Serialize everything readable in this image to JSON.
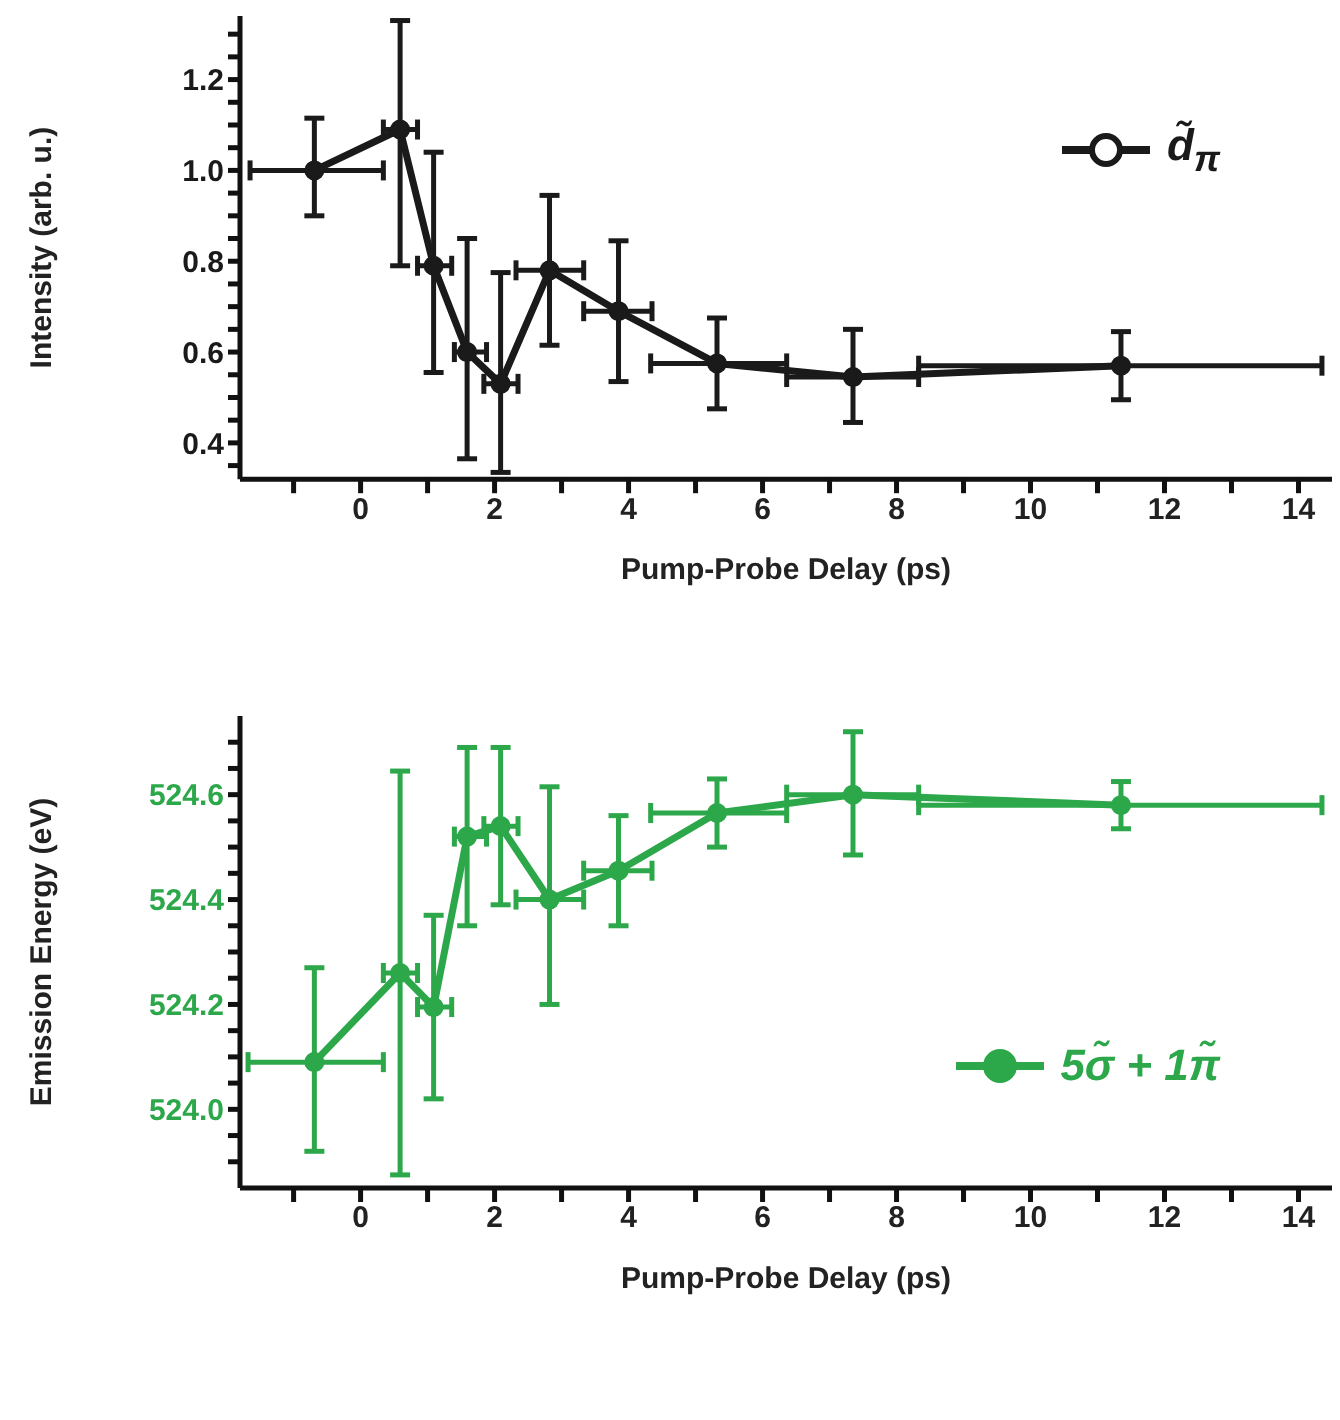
{
  "chart_data": [
    {
      "type": "line",
      "xlabel": "Pump-Probe Delay (ps)",
      "ylabel": "Intensity (arb. u.)",
      "xlim": [
        -1.8,
        14.5
      ],
      "ylim": [
        0.32,
        1.34
      ],
      "xticks": [
        {
          "value": -1,
          "label": null
        },
        0,
        {
          "value": 1,
          "label": null
        },
        2,
        {
          "value": 3,
          "label": null
        },
        4,
        {
          "value": 5,
          "label": null
        },
        6,
        {
          "value": 7,
          "label": null
        },
        8,
        {
          "value": 9,
          "label": null
        },
        10,
        {
          "value": 11,
          "label": null
        },
        12,
        {
          "value": 13,
          "label": null
        },
        14
      ],
      "yticks": [
        {
          "value": 0.35,
          "label": null
        },
        0.4,
        {
          "value": 0.45,
          "label": null
        },
        {
          "value": 0.5,
          "label": null
        },
        {
          "value": 0.55,
          "label": null
        },
        0.6,
        {
          "value": 0.65,
          "label": null
        },
        {
          "value": 0.7,
          "label": null
        },
        {
          "value": 0.75,
          "label": null
        },
        0.8,
        {
          "value": 0.85,
          "label": null
        },
        {
          "value": 0.9,
          "label": null
        },
        {
          "value": 0.95,
          "label": null
        },
        {
          "value": 1.0,
          "label": "1.0"
        },
        {
          "value": 1.05,
          "label": null
        },
        {
          "value": 1.1,
          "label": null
        },
        {
          "value": 1.15,
          "label": null
        },
        1.2,
        {
          "value": 1.25,
          "label": null
        },
        {
          "value": 1.3,
          "label": null
        }
      ],
      "legend": "top right",
      "marker": "circle",
      "line_style": "solid",
      "grid": false,
      "series": [
        {
          "name": "d̃$_{π}$",
          "color": "#1a1a1a",
          "x": [
            -0.69,
            0.59,
            1.09,
            1.59,
            2.09,
            2.82,
            3.85,
            5.32,
            7.35,
            11.35
          ],
          "values": [
            1.0,
            1.09,
            0.79,
            0.6,
            0.53,
            0.78,
            0.69,
            0.575,
            0.545,
            0.57
          ],
          "errors": [
            [
              0.9,
              1.115
            ],
            [
              0.79,
              1.33
            ],
            [
              0.555,
              1.04
            ],
            [
              0.365,
              0.85
            ],
            [
              0.335,
              0.775
            ],
            [
              0.615,
              0.945
            ],
            [
              0.535,
              0.845
            ],
            [
              0.475,
              0.675
            ],
            [
              0.445,
              0.65
            ],
            [
              0.495,
              0.645
            ]
          ],
          "xerrors": [
            [
              -1.65,
              0.34
            ],
            [
              0.34,
              0.85
            ],
            [
              0.85,
              1.36
            ],
            [
              1.4,
              1.88
            ],
            [
              1.84,
              2.35
            ],
            [
              2.32,
              3.33
            ],
            [
              3.33,
              4.35
            ],
            [
              4.33,
              6.36
            ],
            [
              6.36,
              8.33
            ],
            [
              8.33,
              14.35
            ]
          ]
        }
      ]
    },
    {
      "type": "line",
      "xlabel": "Pump-Probe Delay (ps)",
      "ylabel": "Emission Energy (eV)",
      "xlim": [
        -1.8,
        14.5
      ],
      "ylim": [
        523.85,
        524.75
      ],
      "xticks": [
        {
          "value": -1,
          "label": null
        },
        0,
        {
          "value": 1,
          "label": null
        },
        2,
        {
          "value": 3,
          "label": null
        },
        4,
        {
          "value": 5,
          "label": null
        },
        6,
        {
          "value": 7,
          "label": null
        },
        8,
        {
          "value": 9,
          "label": null
        },
        10,
        {
          "value": 11,
          "label": null
        },
        12,
        {
          "value": 13,
          "label": null
        },
        14
      ],
      "yticks": [
        {
          "value": 523.9,
          "label": null
        },
        {
          "value": 523.95,
          "label": null
        },
        {
          "value": 524.0,
          "label": "524.0"
        },
        {
          "value": 524.05,
          "label": null
        },
        {
          "value": 524.1,
          "label": null
        },
        {
          "value": 524.15,
          "label": null
        },
        {
          "value": 524.2,
          "label": "524.2"
        },
        {
          "value": 524.25,
          "label": null
        },
        {
          "value": 524.3,
          "label": null
        },
        {
          "value": 524.35,
          "label": null
        },
        {
          "value": 524.4,
          "label": "524.4"
        },
        {
          "value": 524.45,
          "label": null
        },
        {
          "value": 524.5,
          "label": null
        },
        {
          "value": 524.55,
          "label": null
        },
        {
          "value": 524.6,
          "label": "524.6"
        },
        {
          "value": 524.65,
          "label": null
        },
        {
          "value": 524.7,
          "label": null
        }
      ],
      "legend": "right",
      "marker": "circle",
      "line_style": "solid",
      "grid": false,
      "series": [
        {
          "name": "5σ̃ + 1π̃",
          "color": "#2ca84a",
          "x": [
            -0.69,
            0.59,
            1.09,
            1.59,
            2.09,
            2.82,
            3.85,
            5.32,
            7.35,
            11.35
          ],
          "values": [
            524.09,
            524.26,
            524.195,
            524.52,
            524.54,
            524.4,
            524.455,
            524.565,
            524.6,
            524.58
          ],
          "errors": [
            [
              523.92,
              524.27
            ],
            [
              523.875,
              524.645
            ],
            [
              524.02,
              524.37
            ],
            [
              524.35,
              524.69
            ],
            [
              524.39,
              524.69
            ],
            [
              524.2,
              524.615
            ],
            [
              524.35,
              524.56
            ],
            [
              524.5,
              524.63
            ],
            [
              524.485,
              524.72
            ],
            [
              524.535,
              524.625
            ]
          ],
          "xerrors": [
            [
              -1.68,
              0.34
            ],
            [
              0.34,
              0.85
            ],
            [
              0.85,
              1.36
            ],
            [
              1.4,
              1.88
            ],
            [
              1.84,
              2.35
            ],
            [
              2.32,
              3.33
            ],
            [
              3.33,
              4.35
            ],
            [
              4.33,
              6.36
            ],
            [
              6.36,
              8.33
            ],
            [
              8.33,
              14.35
            ]
          ]
        }
      ]
    }
  ]
}
